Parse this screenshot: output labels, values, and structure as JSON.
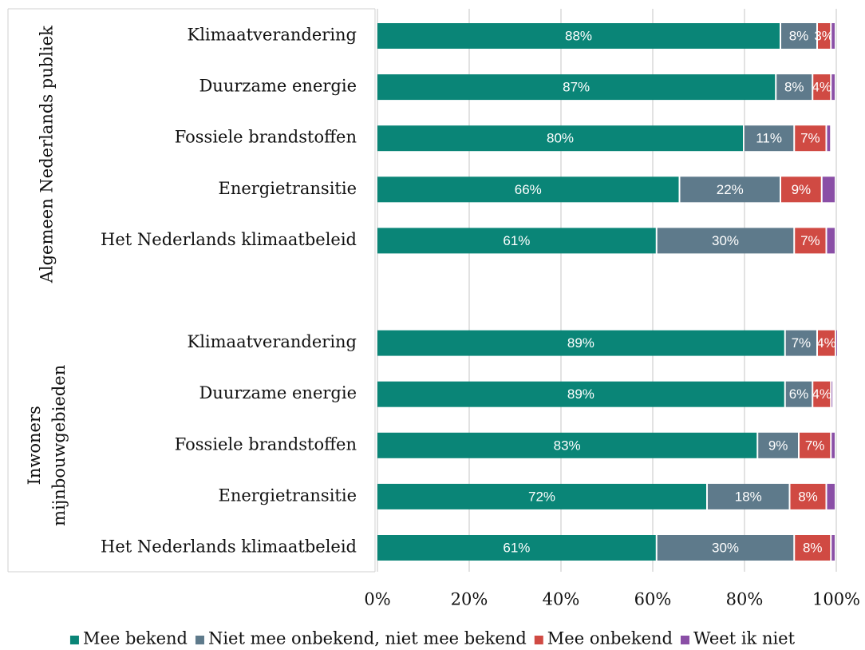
{
  "chart_data": {
    "type": "stacked-bar-horizontal",
    "group_labels": [
      [
        "Algemeen Nederlands publiek"
      ],
      [
        "Inwoners",
        "mijnbouwgebieden"
      ]
    ],
    "categories": [
      "Klimaatverandering",
      "Duurzame energie",
      "Fossiele brandstoffen",
      "Energietransitie",
      "Het Nederlands klimaatbeleid",
      null,
      "Klimaatverandering",
      "Duurzame energie",
      "Fossiele brandstoffen",
      "Energietransitie",
      "Het Nederlands klimaatbeleid"
    ],
    "series": [
      {
        "name": "Mee bekend",
        "color": "#0a8577",
        "values": [
          88,
          87,
          80,
          66,
          61,
          null,
          89,
          89,
          83,
          72,
          61
        ],
        "value_labels": [
          "88%",
          "87%",
          "80%",
          "66%",
          "61%",
          null,
          "89%",
          "89%",
          "83%",
          "72%",
          "61%"
        ]
      },
      {
        "name": "Niet mee onbekend, niet mee bekend",
        "color": "#5e7a8b",
        "values": [
          8,
          8,
          11,
          22,
          30,
          null,
          7,
          6,
          9,
          18,
          30
        ],
        "value_labels": [
          "8%",
          "8%",
          "11%",
          "22%",
          "30%",
          null,
          "7%",
          "6%",
          "9%",
          "18%",
          "30%"
        ]
      },
      {
        "name": "Mee onbekend",
        "color": "#d04a43",
        "values": [
          3,
          4,
          7,
          9,
          7,
          null,
          4,
          4,
          7,
          8,
          8
        ],
        "value_labels": [
          "3%",
          "4%",
          "7%",
          "9%",
          "7%",
          null,
          "4%",
          "4%",
          "7%",
          "8%",
          "8%"
        ]
      },
      {
        "name": "Weet ik niet",
        "color": "#8a4fa6",
        "values": [
          1,
          1,
          1,
          3,
          2,
          null,
          0.5,
          0.5,
          1,
          2,
          1
        ]
      }
    ],
    "xlim": [
      0,
      100
    ],
    "xticks": [
      {
        "value": 0,
        "label": "0%"
      },
      {
        "value": 20,
        "label": "20%"
      },
      {
        "value": 40,
        "label": "40%"
      },
      {
        "value": 60,
        "label": "60%"
      },
      {
        "value": 80,
        "label": "80%"
      },
      {
        "value": 100,
        "label": "100%"
      }
    ],
    "grid": true,
    "legend": "bottom"
  }
}
